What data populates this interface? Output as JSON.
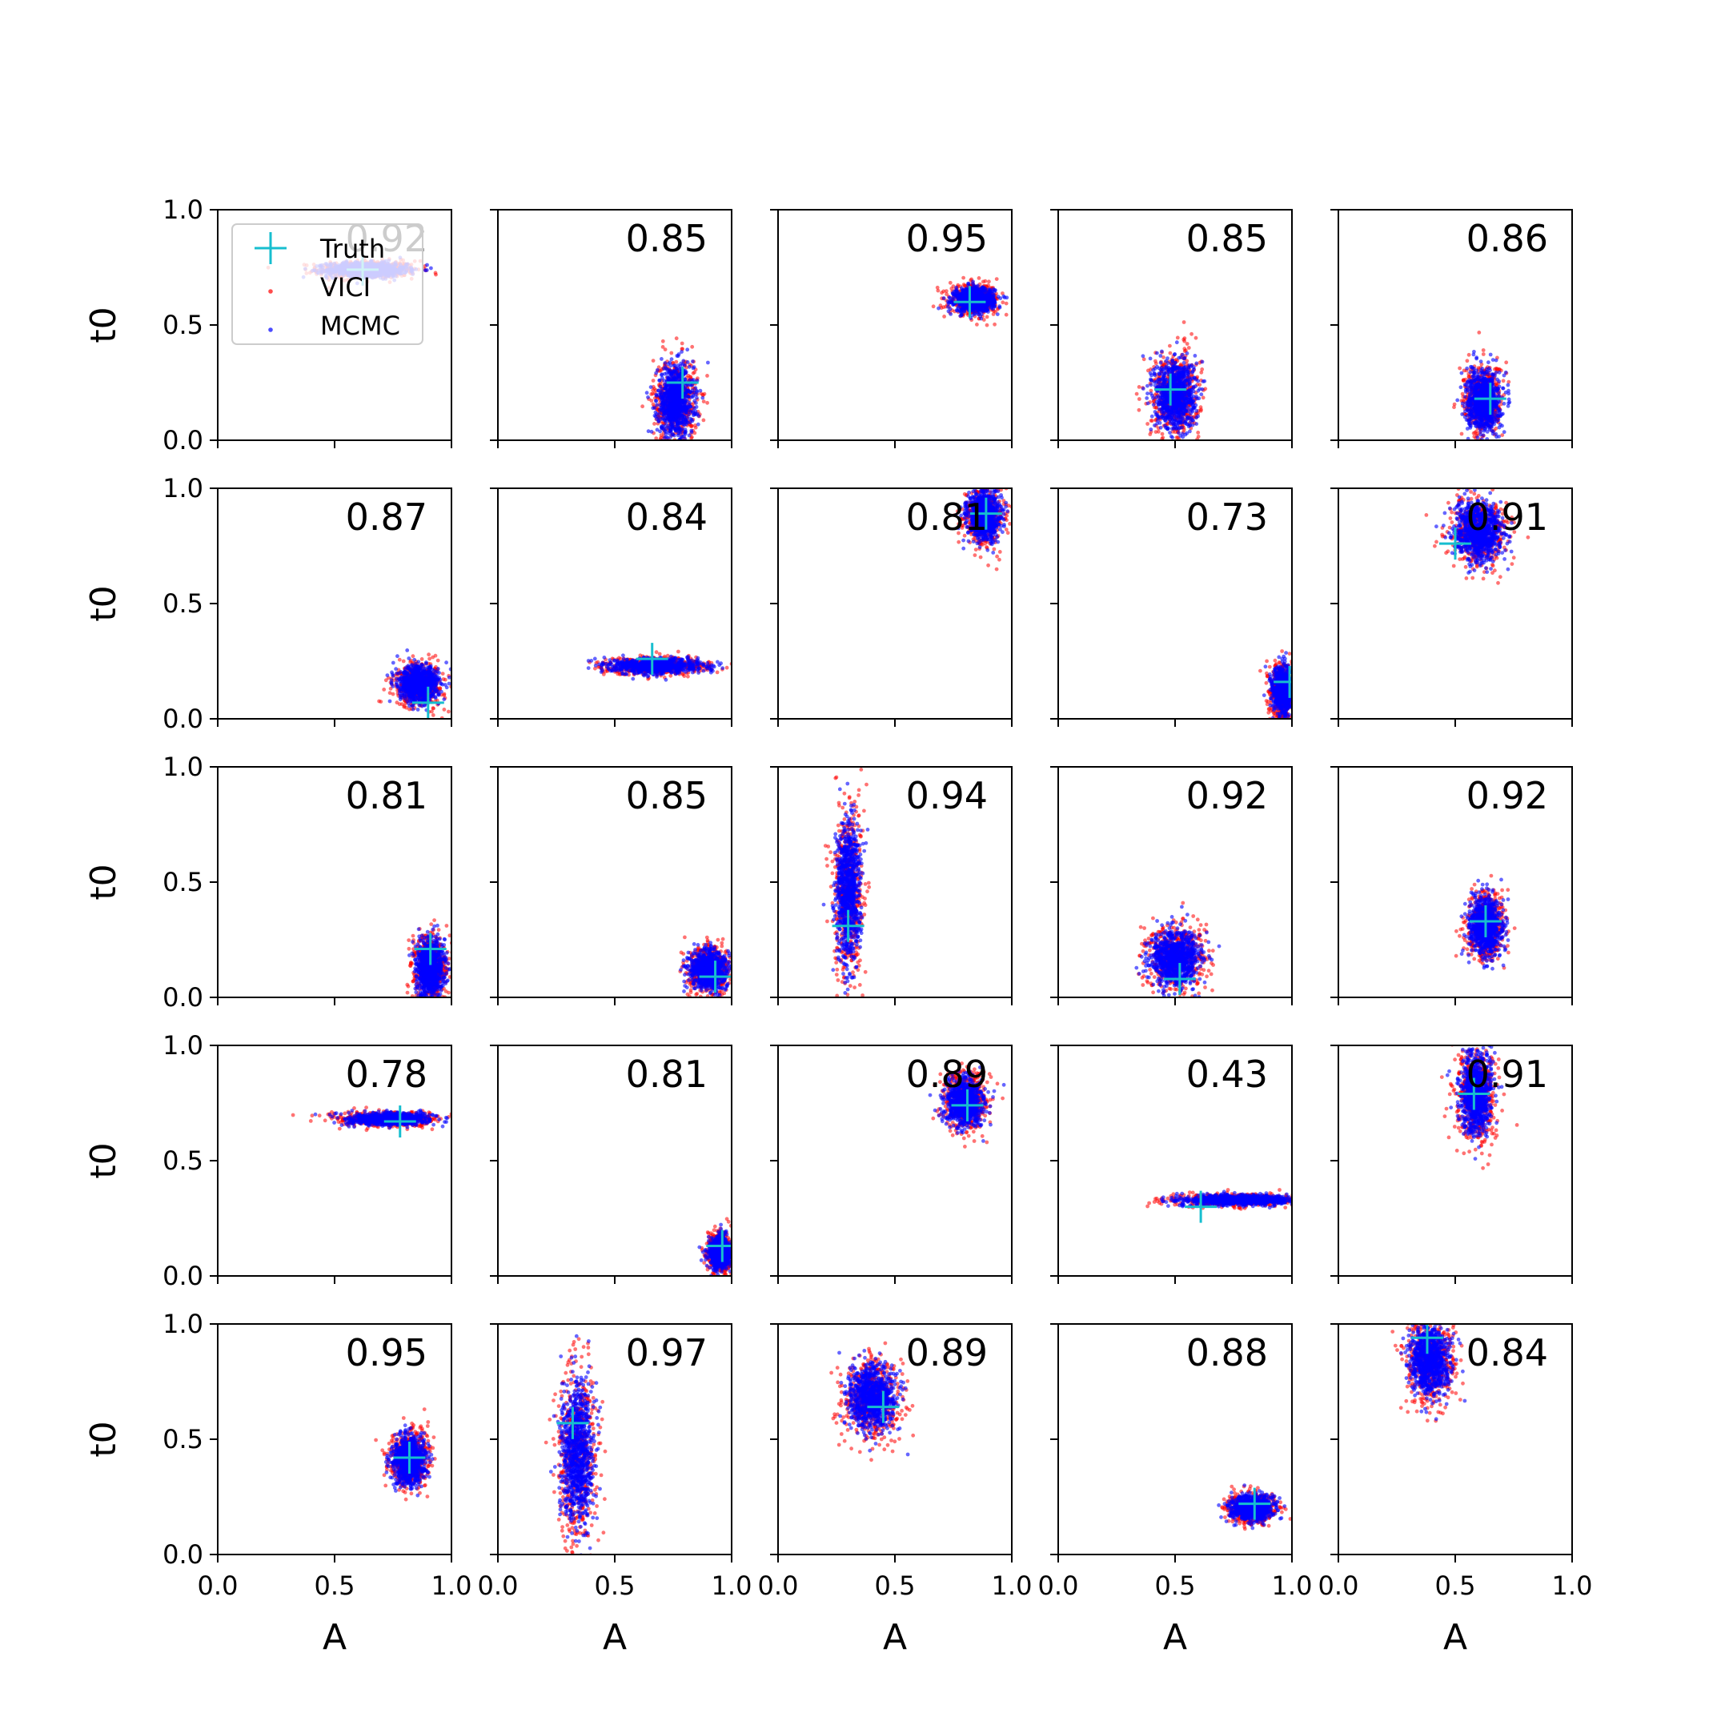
{
  "chart_data": {
    "type": "scatter",
    "layout": {
      "rows": 5,
      "cols": 5
    },
    "xlabel": "A",
    "ylabel": "t0",
    "xlim": [
      0,
      1
    ],
    "ylim": [
      0,
      1
    ],
    "x_ticks": [
      "0.0",
      "0.5",
      "1.0"
    ],
    "y_ticks": [
      "0.0",
      "0.5",
      "1.0"
    ],
    "grid": false,
    "legend": {
      "placement": "top-left of first panel",
      "entries": [
        {
          "name": "Truth",
          "marker": "plus",
          "color": "#17becf"
        },
        {
          "name": "VICI",
          "marker": "dot",
          "color": "#ff0000"
        },
        {
          "name": "MCMC",
          "marker": "dot",
          "color": "#0000ff"
        }
      ]
    },
    "colors": {
      "truth": "#17becf",
      "vici": "#ff0000",
      "mcmc": "#0000ff"
    },
    "panels": [
      {
        "score": "0.92",
        "truth": [
          0.62,
          0.74
        ],
        "cloud": {
          "cx": 0.64,
          "cy": 0.74,
          "sx": 0.1,
          "sy": 0.018,
          "rot": 0
        }
      },
      {
        "score": "0.85",
        "truth": [
          0.79,
          0.25
        ],
        "cloud": {
          "cx": 0.76,
          "cy": 0.17,
          "sx": 0.045,
          "sy": 0.09,
          "rot": 0
        }
      },
      {
        "score": "0.95",
        "truth": [
          0.82,
          0.6
        ],
        "cloud": {
          "cx": 0.84,
          "cy": 0.61,
          "sx": 0.05,
          "sy": 0.03,
          "rot": 0
        }
      },
      {
        "score": "0.85",
        "truth": [
          0.48,
          0.22
        ],
        "cloud": {
          "cx": 0.5,
          "cy": 0.2,
          "sx": 0.05,
          "sy": 0.09,
          "rot": 0
        }
      },
      {
        "score": "0.86",
        "truth": [
          0.65,
          0.18
        ],
        "cloud": {
          "cx": 0.62,
          "cy": 0.17,
          "sx": 0.04,
          "sy": 0.075,
          "rot": 0
        }
      },
      {
        "score": "0.87",
        "truth": [
          0.9,
          0.07
        ],
        "cloud": {
          "cx": 0.86,
          "cy": 0.15,
          "sx": 0.05,
          "sy": 0.045,
          "rot": 0
        }
      },
      {
        "score": "0.84",
        "truth": [
          0.66,
          0.26
        ],
        "cloud": {
          "cx": 0.68,
          "cy": 0.23,
          "sx": 0.11,
          "sy": 0.018,
          "rot": 0
        }
      },
      {
        "score": "0.81",
        "truth": [
          0.89,
          0.89
        ],
        "cloud": {
          "cx": 0.88,
          "cy": 0.88,
          "sx": 0.04,
          "sy": 0.06,
          "rot": 0
        }
      },
      {
        "score": "0.73",
        "truth": [
          0.99,
          0.16
        ],
        "cloud": {
          "cx": 0.96,
          "cy": 0.12,
          "sx": 0.025,
          "sy": 0.06,
          "rot": 0
        }
      },
      {
        "score": "0.91",
        "truth": [
          0.5,
          0.76
        ],
        "cloud": {
          "cx": 0.6,
          "cy": 0.81,
          "sx": 0.06,
          "sy": 0.07,
          "rot": 0
        }
      },
      {
        "score": "0.81",
        "truth": [
          0.91,
          0.21
        ],
        "cloud": {
          "cx": 0.91,
          "cy": 0.13,
          "sx": 0.035,
          "sy": 0.07,
          "rot": 0
        }
      },
      {
        "score": "0.85",
        "truth": [
          0.93,
          0.09
        ],
        "cloud": {
          "cx": 0.9,
          "cy": 0.12,
          "sx": 0.045,
          "sy": 0.05,
          "rot": 0
        }
      },
      {
        "score": "0.94",
        "truth": [
          0.3,
          0.31
        ],
        "cloud": {
          "cx": 0.3,
          "cy": 0.45,
          "sx": 0.03,
          "sy": 0.18,
          "rot": 0
        }
      },
      {
        "score": "0.92",
        "truth": [
          0.52,
          0.08
        ],
        "cloud": {
          "cx": 0.5,
          "cy": 0.17,
          "sx": 0.06,
          "sy": 0.07,
          "rot": 0
        }
      },
      {
        "score": "0.92",
        "truth": [
          0.63,
          0.33
        ],
        "cloud": {
          "cx": 0.63,
          "cy": 0.31,
          "sx": 0.04,
          "sy": 0.07,
          "rot": 0
        }
      },
      {
        "score": "0.78",
        "truth": [
          0.78,
          0.67
        ],
        "cloud": {
          "cx": 0.73,
          "cy": 0.68,
          "sx": 0.1,
          "sy": 0.015,
          "rot": 0
        }
      },
      {
        "score": "0.81",
        "truth": [
          0.96,
          0.13
        ],
        "cloud": {
          "cx": 0.95,
          "cy": 0.1,
          "sx": 0.025,
          "sy": 0.04,
          "rot": 0
        }
      },
      {
        "score": "0.89",
        "truth": [
          0.81,
          0.74
        ],
        "cloud": {
          "cx": 0.8,
          "cy": 0.75,
          "sx": 0.045,
          "sy": 0.06,
          "rot": 0
        }
      },
      {
        "score": "0.43",
        "truth": [
          0.61,
          0.3
        ],
        "cloud": {
          "cx": 0.77,
          "cy": 0.33,
          "sx": 0.14,
          "sy": 0.013,
          "rot": 0
        }
      },
      {
        "score": "0.91",
        "truth": [
          0.58,
          0.79
        ],
        "cloud": {
          "cx": 0.59,
          "cy": 0.79,
          "sx": 0.04,
          "sy": 0.1,
          "rot": 0
        }
      },
      {
        "score": "0.95",
        "truth": [
          0.82,
          0.42
        ],
        "cloud": {
          "cx": 0.82,
          "cy": 0.41,
          "sx": 0.04,
          "sy": 0.06,
          "rot": 0
        }
      },
      {
        "score": "0.97",
        "truth": [
          0.32,
          0.57
        ],
        "cloud": {
          "cx": 0.34,
          "cy": 0.45,
          "sx": 0.04,
          "sy": 0.18,
          "rot": 0
        }
      },
      {
        "score": "0.89",
        "truth": [
          0.45,
          0.64
        ],
        "cloud": {
          "cx": 0.4,
          "cy": 0.68,
          "sx": 0.06,
          "sy": 0.08,
          "rot": 0
        }
      },
      {
        "score": "0.88",
        "truth": [
          0.84,
          0.22
        ],
        "cloud": {
          "cx": 0.83,
          "cy": 0.2,
          "sx": 0.05,
          "sy": 0.03,
          "rot": 0
        }
      },
      {
        "score": "0.84",
        "truth": [
          0.38,
          0.94
        ],
        "cloud": {
          "cx": 0.39,
          "cy": 0.84,
          "sx": 0.05,
          "sy": 0.09,
          "rot": 0
        }
      }
    ]
  }
}
